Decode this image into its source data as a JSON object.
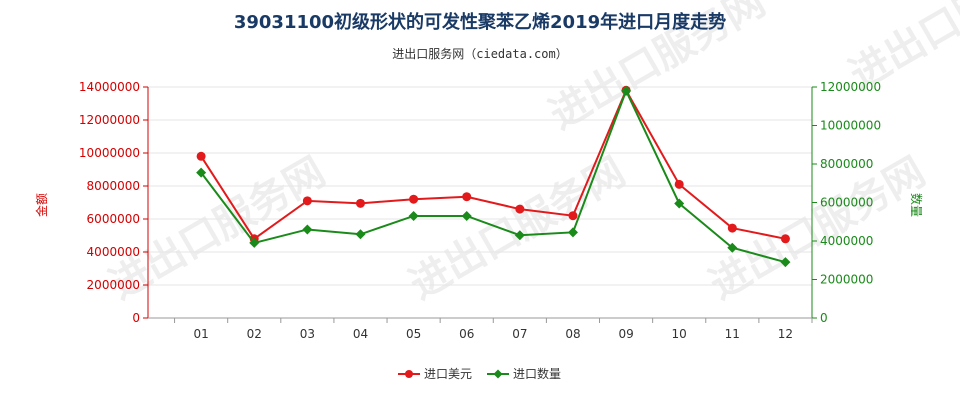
{
  "title": "39031100初级形状的可发性聚苯乙烯2019年进口月度走势",
  "subtitle": "进出口服务网（ciedata.com）",
  "watermark": "进出口服务网",
  "colors": {
    "amount": "#e31a1c",
    "quantity": "#1a8a1a",
    "axis_left": "#d40000",
    "axis_right": "#1a8a1a"
  },
  "chart_data": {
    "type": "line",
    "categories": [
      "01",
      "02",
      "03",
      "04",
      "05",
      "06",
      "07",
      "08",
      "09",
      "10",
      "11",
      "12"
    ],
    "ylabel_left": "金额",
    "ylabel_right": "数量",
    "ylim_left": [
      0,
      14000000
    ],
    "ylim_right": [
      0,
      12000000
    ],
    "yticks_left": [
      "0",
      "2000000",
      "4000000",
      "6000000",
      "8000000",
      "10000000",
      "12000000",
      "14000000"
    ],
    "yticks_right": [
      "0",
      "2000000",
      "4000000",
      "6000000",
      "8000000",
      "10000000",
      "12000000"
    ],
    "legend_position": "bottom",
    "series": [
      {
        "name": "进口美元",
        "axis": "left",
        "marker": "circle",
        "values": [
          9800000,
          4800000,
          7100000,
          6950000,
          7200000,
          7350000,
          6600000,
          6200000,
          13800000,
          8100000,
          5450000,
          4800000
        ]
      },
      {
        "name": "进口数量",
        "axis": "right",
        "marker": "diamond",
        "values": [
          7550000,
          3900000,
          4600000,
          4350000,
          5300000,
          5300000,
          4300000,
          4450000,
          11800000,
          5950000,
          3650000,
          2900000
        ]
      }
    ]
  }
}
